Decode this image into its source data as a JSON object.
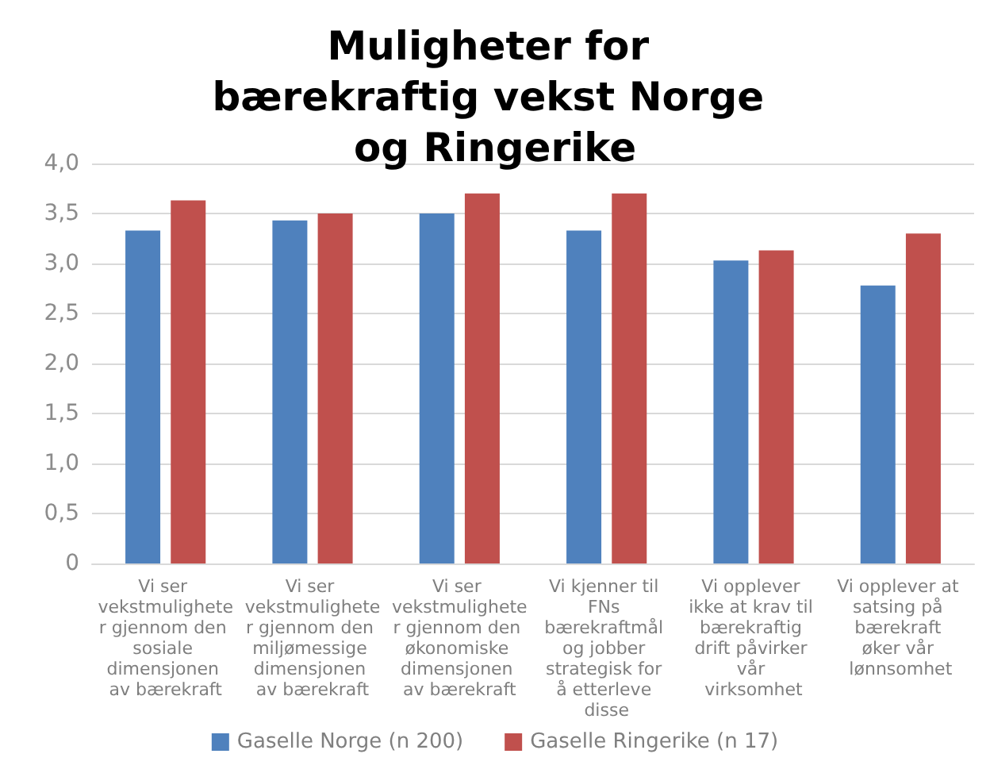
{
  "chart_data": {
    "type": "bar",
    "title": "Muligheter for bærekraftig vekst Norge og Ringerike",
    "categories": [
      "Vi ser vekstmuligheter gjennom den sosiale dimensjonen av bærekraft",
      "Vi ser vekstmuligheter gjennom den miljømessige dimensjonen av bærekraft",
      "Vi ser vekstmuligheter gjennom den økonomiske dimensjonen av bærekraft",
      "Vi kjenner til FNs bærekraftmål og jobber strategisk for å etterleve disse",
      "Vi opplever ikke at krav til bærekraftig drift påvirker vår virksomhet",
      "Vi opplever at satsing på bærekraft øker vår lønnsomhet"
    ],
    "series": [
      {
        "name": "Gaselle Norge (n 200)",
        "color": "#4f81bd",
        "values": [
          3.33,
          3.43,
          3.5,
          3.33,
          3.03,
          2.78
        ]
      },
      {
        "name": "Gaselle Ringerike (n 17)",
        "color": "#c0504d",
        "values": [
          3.63,
          3.5,
          3.7,
          3.7,
          3.13,
          3.3
        ]
      }
    ],
    "ylim": [
      0,
      4
    ],
    "yticks": [
      0,
      {
        "value": 0.5,
        "label": "0,5"
      },
      {
        "value": 1,
        "label": "1,0"
      },
      {
        "value": 1.5,
        "label": "1,5"
      },
      {
        "value": 2,
        "label": "2,0"
      },
      {
        "value": 2.5,
        "label": "2,5"
      },
      {
        "value": 3,
        "label": "3,0"
      },
      {
        "value": 3.5,
        "label": "3,5"
      },
      {
        "value": 4,
        "label": "4,0"
      }
    ],
    "grid": "y",
    "legend": "bottom"
  }
}
